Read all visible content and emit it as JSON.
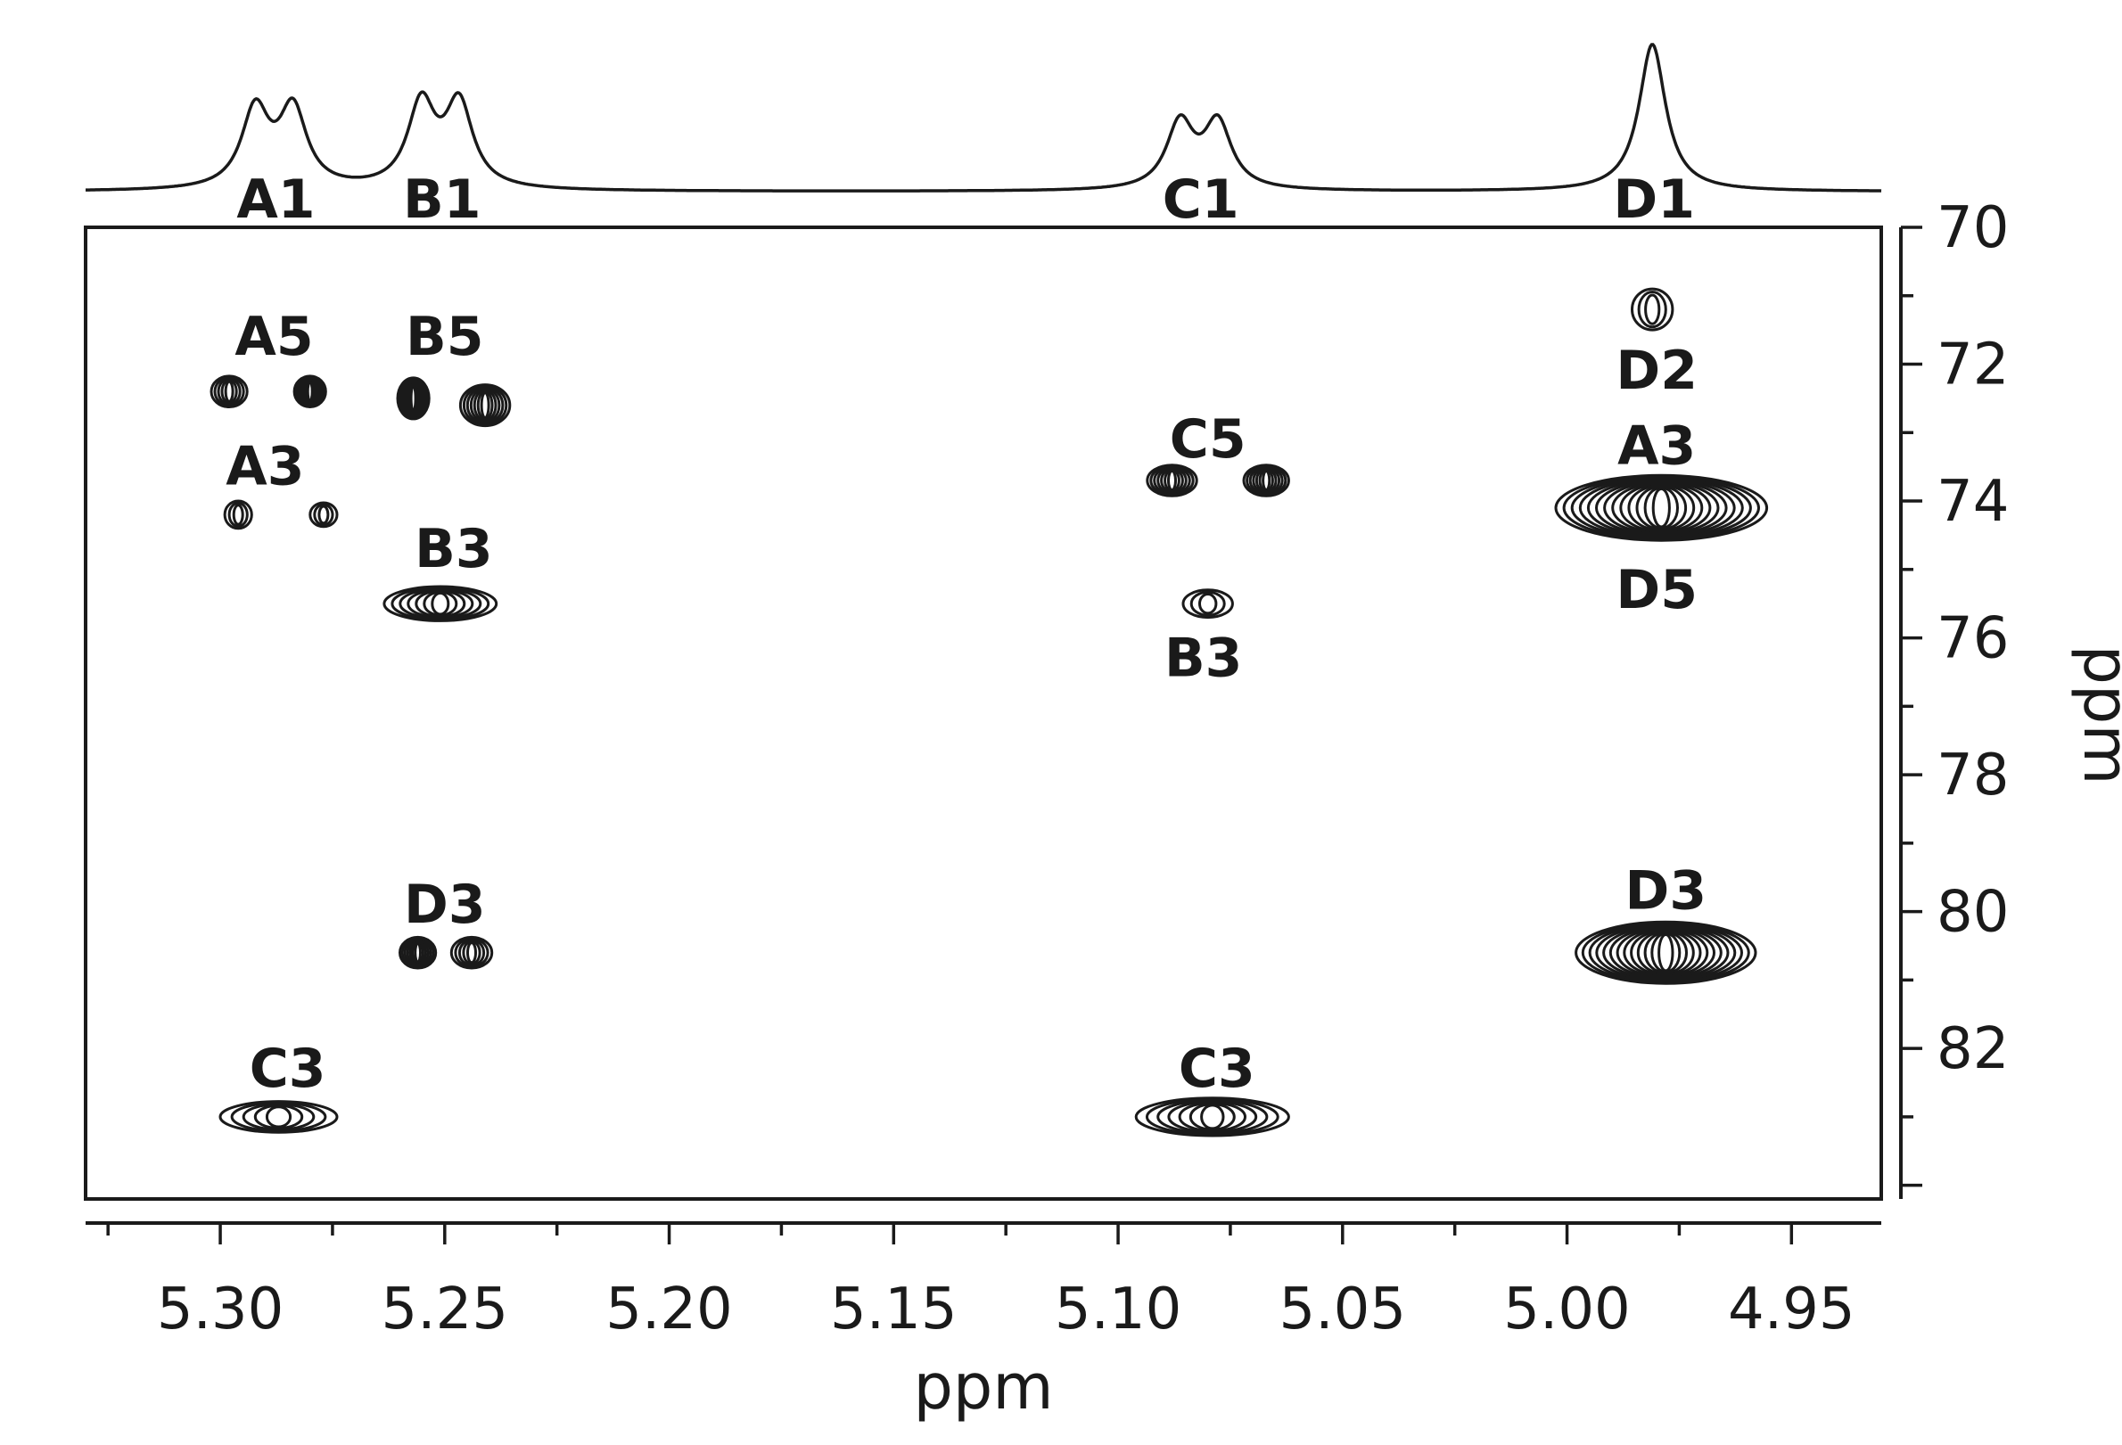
{
  "chart_data": {
    "type": "scatter",
    "subtype": "2D NMR contour plot with 1D projection spectrum",
    "x_axis": {
      "label": "ppm",
      "range": [
        5.33,
        4.93
      ],
      "reversed": true,
      "ticks": [
        "5.30",
        "5.25",
        "5.20",
        "5.15",
        "5.10",
        "5.05",
        "5.00",
        "4.95"
      ],
      "tick_values": [
        5.3,
        5.25,
        5.2,
        5.15,
        5.1,
        5.05,
        5.0,
        4.95
      ]
    },
    "y_axis": {
      "label": "ppm",
      "range": [
        70,
        84.2
      ],
      "inverted": true,
      "position": "right",
      "ticks": [
        "70",
        "72",
        "74",
        "76",
        "78",
        "80",
        "82"
      ],
      "tick_values": [
        70,
        72,
        74,
        76,
        78,
        80,
        82
      ]
    },
    "projection": {
      "peaks": [
        {
          "label": "A1",
          "x": 5.288,
          "multiplet": "doublet",
          "height": 0.74
        },
        {
          "label": "B1",
          "x": 5.251,
          "multiplet": "doublet",
          "height": 0.79
        },
        {
          "label": "C1",
          "x": 5.082,
          "multiplet": "doublet",
          "height": 0.62
        },
        {
          "label": "D1",
          "x": 4.981,
          "multiplet": "singlet",
          "height": 1.0
        }
      ]
    },
    "cross_peaks": [
      {
        "x": 5.298,
        "y": 72.4,
        "w": 0.008,
        "h": 0.45,
        "intensity": "medium"
      },
      {
        "x": 5.28,
        "y": 72.4,
        "w": 0.007,
        "h": 0.45,
        "intensity": "strong"
      },
      {
        "x": 5.257,
        "y": 72.5,
        "w": 0.007,
        "h": 0.6,
        "intensity": "strong"
      },
      {
        "x": 5.241,
        "y": 72.6,
        "w": 0.011,
        "h": 0.6,
        "intensity": "strong"
      },
      {
        "x": 5.296,
        "y": 74.2,
        "w": 0.006,
        "h": 0.4,
        "intensity": "weak"
      },
      {
        "x": 5.277,
        "y": 74.2,
        "w": 0.006,
        "h": 0.35,
        "intensity": "weak"
      },
      {
        "x": 5.251,
        "y": 75.5,
        "w": 0.025,
        "h": 0.5,
        "intensity": "strong"
      },
      {
        "x": 5.088,
        "y": 73.7,
        "w": 0.011,
        "h": 0.45,
        "intensity": "strong"
      },
      {
        "x": 5.067,
        "y": 73.7,
        "w": 0.01,
        "h": 0.45,
        "intensity": "strong"
      },
      {
        "x": 5.08,
        "y": 75.5,
        "w": 0.011,
        "h": 0.4,
        "intensity": "weak"
      },
      {
        "x": 4.981,
        "y": 71.2,
        "w": 0.009,
        "h": 0.6,
        "intensity": "weak"
      },
      {
        "x": 4.979,
        "y": 74.1,
        "w": 0.047,
        "h": 0.95,
        "intensity": "very-strong"
      },
      {
        "x": 4.978,
        "y": 80.6,
        "w": 0.04,
        "h": 0.9,
        "intensity": "very-strong"
      },
      {
        "x": 5.256,
        "y": 80.6,
        "w": 0.008,
        "h": 0.45,
        "intensity": "strong"
      },
      {
        "x": 5.244,
        "y": 80.6,
        "w": 0.009,
        "h": 0.45,
        "intensity": "medium"
      },
      {
        "x": 5.287,
        "y": 83.0,
        "w": 0.026,
        "h": 0.45,
        "intensity": "medium"
      },
      {
        "x": 5.079,
        "y": 83.0,
        "w": 0.034,
        "h": 0.55,
        "intensity": "strong"
      }
    ],
    "annotations": [
      {
        "text": "A5",
        "x": 5.288,
        "y": 71.6
      },
      {
        "text": "B5",
        "x": 5.25,
        "y": 71.6
      },
      {
        "text": "A3",
        "x": 5.29,
        "y": 73.5
      },
      {
        "text": "B3",
        "x": 5.248,
        "y": 74.7
      },
      {
        "text": "C5",
        "x": 5.08,
        "y": 73.1
      },
      {
        "text": "B3",
        "x": 5.081,
        "y": 76.3
      },
      {
        "text": "D2",
        "x": 4.98,
        "y": 72.1
      },
      {
        "text": "A3",
        "x": 4.98,
        "y": 73.2
      },
      {
        "text": "D5",
        "x": 4.98,
        "y": 75.3
      },
      {
        "text": "D3",
        "x": 5.25,
        "y": 79.9
      },
      {
        "text": "D3",
        "x": 4.978,
        "y": 79.7
      },
      {
        "text": "C3",
        "x": 5.285,
        "y": 82.3
      },
      {
        "text": "C3",
        "x": 5.078,
        "y": 82.3
      }
    ],
    "colors": {
      "ink": "#1a1a1a",
      "background": "#ffffff"
    },
    "grid": false
  }
}
